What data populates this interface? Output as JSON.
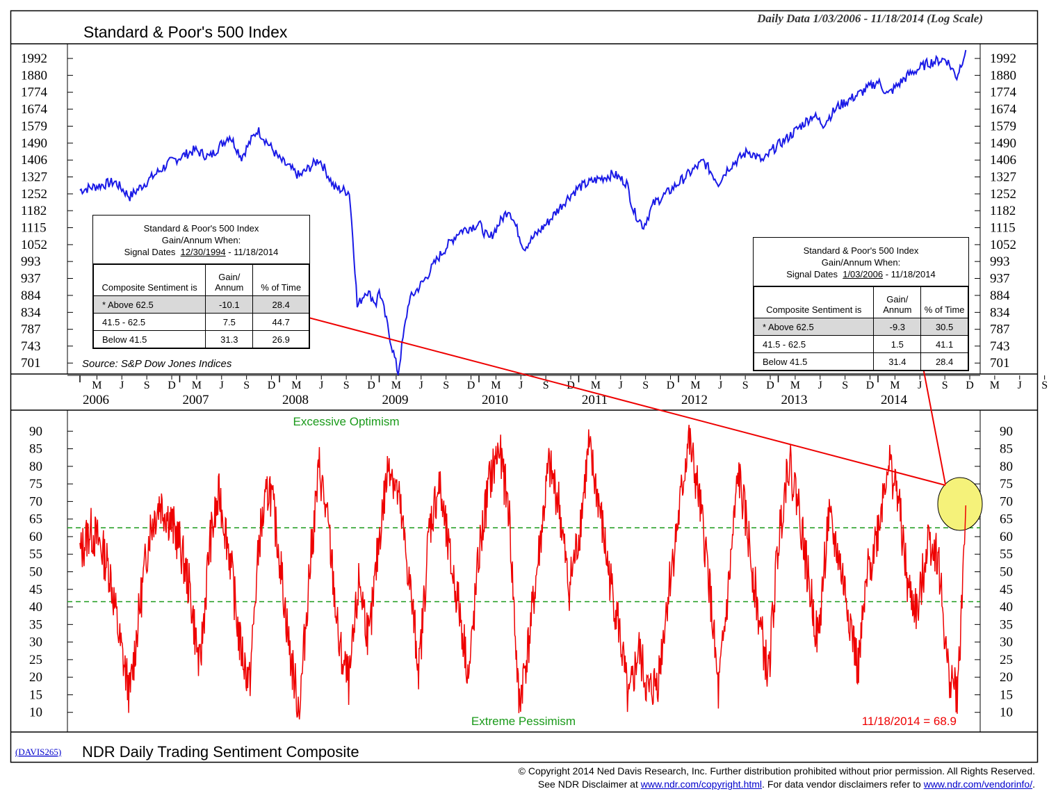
{
  "header": {
    "title": "Standard & Poor's 500 Index",
    "date_range": "Daily Data 1/03/2006 - 11/18/2014 (Log Scale)"
  },
  "price_axis": {
    "ticks": [
      1992,
      1880,
      1774,
      1674,
      1579,
      1490,
      1406,
      1327,
      1252,
      1182,
      1115,
      1052,
      993,
      937,
      884,
      834,
      787,
      743,
      701
    ]
  },
  "source": "Source: S&P Dow Jones Indices",
  "stats_left": {
    "line1": "Standard & Poor's 500 Index",
    "line2": "Gain/Annum When:",
    "signal_prefix": "Signal Dates",
    "signal_start": "12/30/1994",
    "signal_end": "- 11/18/2014",
    "col_label": "Composite Sentiment is",
    "col_gain": "Gain/ Annum",
    "col_time": "% of Time",
    "rows": [
      {
        "label": "* Above 62.5",
        "gain": "-10.1",
        "time": "28.4"
      },
      {
        "label": "41.5 - 62.5",
        "gain": "7.5",
        "time": "44.7"
      },
      {
        "label": "Below 41.5",
        "gain": "31.3",
        "time": "26.9"
      }
    ]
  },
  "stats_right": {
    "line1": "Standard & Poor's 500 Index",
    "line2": "Gain/Annum When:",
    "signal_prefix": "Signal Dates",
    "signal_start": "1/03/2006",
    "signal_end": "- 11/18/2014",
    "col_label": "Composite Sentiment is",
    "col_gain": "Gain/ Annum",
    "col_time": "% of Time",
    "rows": [
      {
        "label": "* Above 62.5",
        "gain": "-9.3",
        "time": "30.5"
      },
      {
        "label": "41.5 - 62.5",
        "gain": "1.5",
        "time": "41.1"
      },
      {
        "label": "Below 41.5",
        "gain": "31.4",
        "time": "28.4"
      }
    ]
  },
  "time_axis": {
    "years": [
      "2006",
      "2007",
      "2008",
      "2009",
      "2010",
      "2011",
      "2012",
      "2013",
      "2014"
    ],
    "months": [
      "M",
      "J",
      "S",
      "D",
      "M",
      "J",
      "S",
      "D",
      "M",
      "J",
      "S",
      "D",
      "M",
      "J",
      "S",
      "D",
      "M",
      "J",
      "S",
      "D",
      "M",
      "J",
      "S",
      "D",
      "M",
      "J",
      "S",
      "D",
      "M",
      "J",
      "S",
      "D",
      "M",
      "J",
      "S",
      "D",
      "M",
      "J",
      "S"
    ]
  },
  "sentiment": {
    "excessive_label": "Excessive Optimism",
    "extreme_label": "Extreme Pessimism",
    "last_reading": "11/18/2014 = 68.9",
    "axis_ticks": [
      90,
      85,
      80,
      75,
      70,
      65,
      60,
      55,
      50,
      45,
      40,
      35,
      30,
      25,
      20,
      15,
      10
    ]
  },
  "footer": {
    "code": "(DAVIS265)",
    "title": "NDR Daily Trading Sentiment Composite",
    "copyright": "© Copyright 2014 Ned Davis Research, Inc.  Further distribution prohibited without prior permission.  All Rights Reserved.",
    "disclaimer_prefix": "See NDR Disclaimer at",
    "disclaimer_link1": "www.ndr.com/copyright.html",
    "disclaimer_mid": ". For data vendor disclaimers refer to",
    "disclaimer_link2": "www.ndr.com/vendorinfo/",
    "disclaimer_suffix": "."
  },
  "colors": {
    "price_line": "#1a1ae6",
    "sentiment_line": "#ee0000",
    "threshold_line": "#1a9a1a",
    "highlight": "#f5f27a"
  },
  "chart_data": [
    {
      "type": "line",
      "title": "Standard & Poor's 500 Index",
      "scale": "log",
      "ylim": [
        680,
        2060
      ],
      "x": [
        2006.0,
        2006.35,
        2006.5,
        2006.9,
        2007.15,
        2007.3,
        2007.5,
        2007.62,
        2007.78,
        2008.0,
        2008.2,
        2008.4,
        2008.55,
        2008.7,
        2008.78,
        2008.87,
        2008.97,
        2009.0,
        2009.12,
        2009.19,
        2009.3,
        2009.45,
        2009.6,
        2009.8,
        2010.0,
        2010.1,
        2010.3,
        2010.45,
        2010.55,
        2010.7,
        2010.9,
        2011.0,
        2011.15,
        2011.35,
        2011.48,
        2011.55,
        2011.65,
        2011.75,
        2011.9,
        2012.0,
        2012.25,
        2012.4,
        2012.5,
        2012.7,
        2012.85,
        2012.95,
        2013.1,
        2013.35,
        2013.45,
        2013.6,
        2013.8,
        2014.0,
        2014.1,
        2014.3,
        2014.5,
        2014.68,
        2014.79,
        2014.88
      ],
      "values": [
        1268,
        1305,
        1240,
        1395,
        1455,
        1420,
        1530,
        1420,
        1560,
        1410,
        1330,
        1410,
        1280,
        1260,
        850,
        900,
        860,
        900,
        750,
        676,
        870,
        930,
        1010,
        1100,
        1130,
        1070,
        1190,
        1040,
        1080,
        1140,
        1240,
        1280,
        1310,
        1340,
        1300,
        1180,
        1120,
        1210,
        1260,
        1300,
        1400,
        1300,
        1370,
        1450,
        1400,
        1460,
        1520,
        1640,
        1590,
        1690,
        1760,
        1840,
        1760,
        1880,
        1960,
        1990,
        1870,
        2050
      ],
      "ylabel": "",
      "xlabel": ""
    },
    {
      "type": "line",
      "title": "NDR Daily Trading Sentiment Composite",
      "ylim": [
        5,
        95
      ],
      "thresholds": [
        62.5,
        41.5
      ],
      "x": [
        2006.0,
        2006.1,
        2006.2,
        2006.3,
        2006.4,
        2006.5,
        2006.6,
        2006.7,
        2006.8,
        2006.9,
        2007.0,
        2007.1,
        2007.2,
        2007.3,
        2007.4,
        2007.5,
        2007.6,
        2007.7,
        2007.8,
        2007.9,
        2008.0,
        2008.1,
        2008.2,
        2008.3,
        2008.4,
        2008.5,
        2008.6,
        2008.7,
        2008.8,
        2008.9,
        2009.0,
        2009.1,
        2009.2,
        2009.3,
        2009.4,
        2009.5,
        2009.6,
        2009.7,
        2009.8,
        2009.9,
        2010.0,
        2010.1,
        2010.2,
        2010.3,
        2010.4,
        2010.5,
        2010.6,
        2010.7,
        2010.8,
        2010.9,
        2011.0,
        2011.1,
        2011.2,
        2011.3,
        2011.4,
        2011.5,
        2011.6,
        2011.7,
        2011.8,
        2011.9,
        2012.0,
        2012.1,
        2012.2,
        2012.3,
        2012.4,
        2012.5,
        2012.6,
        2012.7,
        2012.8,
        2012.9,
        2013.0,
        2013.1,
        2013.2,
        2013.3,
        2013.4,
        2013.5,
        2013.6,
        2013.7,
        2013.8,
        2013.9,
        2014.0,
        2014.1,
        2014.2,
        2014.3,
        2014.4,
        2014.5,
        2014.6,
        2014.7,
        2014.8,
        2014.88
      ],
      "values": [
        55,
        62,
        58,
        50,
        30,
        15,
        40,
        62,
        70,
        65,
        58,
        45,
        22,
        58,
        72,
        55,
        30,
        18,
        60,
        75,
        55,
        28,
        10,
        50,
        80,
        60,
        28,
        18,
        48,
        30,
        60,
        82,
        70,
        48,
        22,
        62,
        75,
        55,
        40,
        20,
        55,
        75,
        85,
        68,
        12,
        30,
        55,
        80,
        70,
        45,
        60,
        85,
        70,
        50,
        35,
        12,
        28,
        15,
        20,
        45,
        65,
        88,
        72,
        50,
        15,
        45,
        78,
        60,
        38,
        20,
        58,
        82,
        70,
        48,
        30,
        65,
        55,
        40,
        22,
        50,
        62,
        82,
        72,
        45,
        38,
        60,
        55,
        22,
        15,
        68.9
      ],
      "ylabel": "",
      "xlabel": ""
    }
  ]
}
